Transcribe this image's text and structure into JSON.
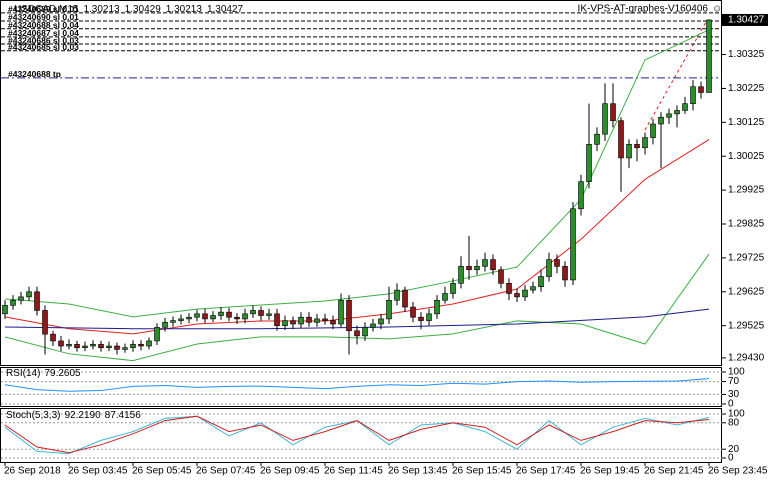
{
  "chart_data": [
    {
      "type": "candlestick",
      "title": "USDCAD,M15",
      "subtitle": "IK-VPS-AT-graphes-V160406",
      "up_color": "#2e8b2e",
      "down_color": "#8b1a1a",
      "categories": [
        "26 Sep 2018",
        null,
        null,
        null,
        null,
        null,
        null,
        null,
        "26 Sep 03:45",
        null,
        null,
        null,
        null,
        null,
        null,
        null,
        "26 Sep 05:45",
        null,
        null,
        null,
        null,
        null,
        null,
        null,
        "26 Sep 07:45",
        null,
        null,
        null,
        null,
        null,
        null,
        null,
        "26 Sep 09:45",
        null,
        null,
        null,
        null,
        null,
        null,
        null,
        "26 Sep 11:45",
        null,
        null,
        null,
        null,
        null,
        null,
        null,
        "26 Sep 13:45",
        null,
        null,
        null,
        null,
        null,
        null,
        null,
        "26 Sep 15:45",
        null,
        null,
        null,
        null,
        null,
        null,
        null,
        "26 Sep 17:45",
        null,
        null,
        null,
        null,
        null,
        null,
        null,
        "26 Sep 19:45",
        null,
        null,
        null,
        null,
        null,
        null,
        null,
        "26 Sep 21:45",
        null,
        null,
        null,
        null,
        null,
        null,
        null,
        "26 Sep 23:45"
      ],
      "open": [
        1.2956,
        1.29585,
        1.296,
        1.2961,
        1.29625,
        1.2957,
        1.295,
        1.2948,
        1.29465,
        1.2947,
        1.2946,
        1.29465,
        1.2947,
        1.2946,
        1.29465,
        1.29455,
        1.2946,
        1.2947,
        1.29465,
        1.2948,
        1.2952,
        1.29535,
        1.2954,
        1.29545,
        1.2955,
        1.2956,
        1.29545,
        1.29555,
        1.29565,
        1.2955,
        1.29545,
        1.2956,
        1.2957,
        1.29555,
        1.2956,
        1.29525,
        1.2954,
        1.2953,
        1.2955,
        1.29535,
        1.29545,
        1.2954,
        1.2953,
        1.296,
        1.2951,
        1.29495,
        1.2952,
        1.2953,
        1.29545,
        1.296,
        1.2963,
        1.2958,
        1.2955,
        1.2954,
        1.2956,
        1.296,
        1.2962,
        1.2965,
        1.297,
        1.2969,
        1.297,
        1.2972,
        1.2969,
        1.2965,
        1.2962,
        1.2961,
        1.2963,
        1.2964,
        1.2967,
        1.2972,
        1.297,
        1.2966,
        1.2987,
        1.2995,
        1.3006,
        1.3009,
        1.3018,
        1.3013,
        1.3002,
        1.3006,
        1.3005,
        1.3008,
        1.3012,
        1.3014,
        1.3015,
        1.3016,
        1.3018,
        1.3023,
        1.30213
      ],
      "high": [
        1.296,
        1.29615,
        1.29625,
        1.2964,
        1.2964,
        1.29585,
        1.2951,
        1.29495,
        1.29485,
        1.2948,
        1.29478,
        1.29482,
        1.2948,
        1.29478,
        1.29475,
        1.29472,
        1.29482,
        1.29482,
        1.2949,
        1.29532,
        1.29548,
        1.29552,
        1.29558,
        1.29562,
        1.29572,
        1.29575,
        1.29568,
        1.2958,
        1.29578,
        1.29562,
        1.29575,
        1.29585,
        1.29582,
        1.29575,
        1.29575,
        1.29555,
        1.29552,
        1.29565,
        1.29565,
        1.2956,
        1.2956,
        1.29555,
        1.2962,
        1.29615,
        1.29525,
        1.29535,
        1.29545,
        1.2956,
        1.2964,
        1.2965,
        1.2964,
        1.29595,
        1.29565,
        1.29575,
        1.29615,
        1.2964,
        1.29665,
        1.2973,
        1.2979,
        1.2972,
        1.2974,
        1.29735,
        1.297,
        1.29665,
        1.29635,
        1.29645,
        1.29655,
        1.2969,
        1.2974,
        1.29735,
        1.29715,
        1.2989,
        1.2997,
        1.3018,
        1.3011,
        1.3024,
        1.3024,
        1.3014,
        1.30075,
        1.30075,
        1.30095,
        1.30135,
        1.30155,
        1.30165,
        1.30175,
        1.302,
        1.3025,
        1.30245,
        1.30429
      ],
      "low": [
        1.29545,
        1.29572,
        1.29588,
        1.29598,
        1.29555,
        1.2944,
        1.29465,
        1.2945,
        1.29455,
        1.29448,
        1.2945,
        1.29455,
        1.29448,
        1.2945,
        1.2944,
        1.29445,
        1.29448,
        1.29452,
        1.29455,
        1.29468,
        1.29508,
        1.29522,
        1.29528,
        1.29532,
        1.29538,
        1.29532,
        1.29535,
        1.29542,
        1.29538,
        1.2953,
        1.29532,
        1.29548,
        1.2954,
        1.29542,
        1.2951,
        1.29512,
        1.29515,
        1.29518,
        1.29522,
        1.29522,
        1.29528,
        1.29515,
        1.2952,
        1.2944,
        1.2947,
        1.2948,
        1.29508,
        1.29515,
        1.2953,
        1.29585,
        1.29565,
        1.29535,
        1.29515,
        1.29525,
        1.29545,
        1.2959,
        1.29605,
        1.29635,
        1.2966,
        1.29675,
        1.29685,
        1.29675,
        1.29635,
        1.296,
        1.29595,
        1.29598,
        1.2962,
        1.29625,
        1.29655,
        1.2968,
        1.2964,
        1.29645,
        1.2985,
        1.2993,
        1.3004,
        1.3007,
        1.3011,
        1.2992,
        1.2999,
        1.3001,
        1.3003,
        1.3006,
        1.2999,
        1.3012,
        1.3011,
        1.3015,
        1.3016,
        1.30195,
        1.30213
      ],
      "close": [
        1.29585,
        1.296,
        1.2961,
        1.29625,
        1.2957,
        1.295,
        1.2948,
        1.29465,
        1.2947,
        1.2946,
        1.29465,
        1.2947,
        1.2946,
        1.29465,
        1.29455,
        1.2946,
        1.2947,
        1.29465,
        1.2948,
        1.2952,
        1.29535,
        1.2954,
        1.29545,
        1.2955,
        1.2956,
        1.29545,
        1.29555,
        1.29565,
        1.2955,
        1.29545,
        1.2956,
        1.2957,
        1.29555,
        1.2956,
        1.29525,
        1.2954,
        1.2953,
        1.2955,
        1.29535,
        1.29545,
        1.2954,
        1.2953,
        1.296,
        1.2951,
        1.29495,
        1.2952,
        1.2953,
        1.29545,
        1.296,
        1.2963,
        1.2958,
        1.2955,
        1.2954,
        1.2956,
        1.296,
        1.2962,
        1.2965,
        1.297,
        1.2969,
        1.297,
        1.2972,
        1.2969,
        1.2965,
        1.2962,
        1.2961,
        1.2963,
        1.2964,
        1.2967,
        1.2972,
        1.297,
        1.2966,
        1.2987,
        1.2995,
        1.3006,
        1.3009,
        1.3018,
        1.3013,
        1.3002,
        1.3006,
        1.3005,
        1.3008,
        1.3012,
        1.3014,
        1.3015,
        1.3016,
        1.3018,
        1.3023,
        1.30213,
        1.30427
      ],
      "overlays": [
        {
          "color": "#3cb043",
          "x": [
            0,
            8,
            16,
            24,
            32,
            40,
            48,
            56,
            64,
            72,
            80,
            88
          ],
          "values": [
            1.29604,
            1.29589,
            1.29551,
            1.29574,
            1.29586,
            1.29598,
            1.29619,
            1.29657,
            1.29698,
            1.29898,
            1.30309,
            1.30398
          ]
        },
        {
          "color": "#3cb043",
          "x": [
            0,
            8,
            16,
            24,
            32,
            40,
            48,
            56,
            64,
            72,
            80,
            88
          ],
          "values": [
            1.29492,
            1.29442,
            1.29422,
            1.29471,
            1.29492,
            1.29492,
            1.29486,
            1.29501,
            1.29539,
            1.2953,
            1.29471,
            1.29736
          ]
        },
        {
          "color": "#e02020",
          "x": [
            0,
            8,
            16,
            24,
            32,
            40,
            48,
            56,
            64,
            72,
            80,
            88
          ],
          "values": [
            1.29551,
            1.29516,
            1.29501,
            1.2953,
            1.29539,
            1.29539,
            1.2956,
            1.29589,
            1.29633,
            1.2978,
            1.29957,
            1.30074
          ]
        },
        {
          "color": "#1c1c8c",
          "x": [
            0,
            16,
            32,
            48,
            64,
            80,
            88
          ],
          "values": [
            1.29521,
            1.29516,
            1.29516,
            1.29521,
            1.2953,
            1.29551,
            1.29574
          ]
        }
      ],
      "levels": [
        {
          "value": 1.30448,
          "label": "#43240689 sl 0.01",
          "color": "#000000"
        },
        {
          "value": 1.30424,
          "label": "#43240690 sl 0.01",
          "color": "#000000"
        },
        {
          "value": 1.30401,
          "label": "#43240688 sl 0.04",
          "color": "#000000"
        },
        {
          "value": 1.30377,
          "label": "#43240687 sl 0.04",
          "color": "#000000"
        },
        {
          "value": 1.30356,
          "label": "#43240686 sl 0.03",
          "color": "#000000"
        },
        {
          "value": 1.30336,
          "label": "#43240685 sl 0.03",
          "color": "#000000"
        },
        {
          "value": 1.30256,
          "label": "#43240688 tp",
          "color": "#1c1c8c"
        }
      ],
      "ylim": [
        1.29409,
        1.3048
      ],
      "yticks": [
        1.30325,
        1.30225,
        1.30125,
        1.30025,
        1.29925,
        1.29825,
        1.29725,
        1.29625,
        1.29525,
        {
          "value": 1.2943,
          "label": "1.29430"
        }
      ]
    },
    {
      "type": "line",
      "title": "RSI(14)",
      "ylim": [
        0,
        100
      ],
      "yticks": [
        100,
        70,
        30,
        0
      ],
      "series": [
        {
          "color": "#1e90ff",
          "x": [
            0,
            4,
            8,
            12,
            16,
            20,
            24,
            28,
            32,
            36,
            40,
            44,
            48,
            52,
            56,
            60,
            64,
            68,
            72,
            76,
            80,
            84,
            88
          ],
          "values": [
            60,
            45,
            40,
            42,
            55,
            58,
            52,
            55,
            56,
            52,
            48,
            55,
            60,
            58,
            65,
            62,
            70,
            72,
            68,
            70,
            71,
            72,
            79.2605
          ]
        }
      ]
    },
    {
      "type": "line",
      "title": "Stoch(5,3,3)",
      "ylim": [
        0,
        100
      ],
      "yticks": [
        100,
        80,
        20,
        0
      ],
      "series": [
        {
          "color": "#3fb6d8",
          "x": [
            0,
            4,
            8,
            12,
            16,
            20,
            24,
            28,
            32,
            36,
            40,
            44,
            48,
            52,
            56,
            60,
            64,
            68,
            72,
            76,
            80,
            84,
            88
          ],
          "values": [
            70,
            15,
            10,
            40,
            60,
            90,
            95,
            50,
            80,
            30,
            70,
            85,
            30,
            75,
            80,
            60,
            20,
            85,
            30,
            70,
            90,
            75,
            92.219
          ],
          "value_labels": [
            null,
            null,
            null,
            null,
            null,
            null,
            null,
            null,
            null,
            null,
            null,
            null,
            null,
            null,
            null,
            null,
            null,
            null,
            null,
            null,
            null,
            null,
            "92.2190"
          ]
        },
        {
          "color": "#d02020",
          "x": [
            0,
            4,
            8,
            12,
            16,
            20,
            24,
            28,
            32,
            36,
            40,
            44,
            48,
            52,
            56,
            60,
            64,
            68,
            72,
            76,
            80,
            84,
            88
          ],
          "values": [
            75,
            25,
            12,
            30,
            55,
            85,
            95,
            60,
            75,
            40,
            60,
            85,
            40,
            65,
            80,
            70,
            30,
            75,
            40,
            60,
            85,
            80,
            87.4156
          ]
        }
      ]
    }
  ]
}
